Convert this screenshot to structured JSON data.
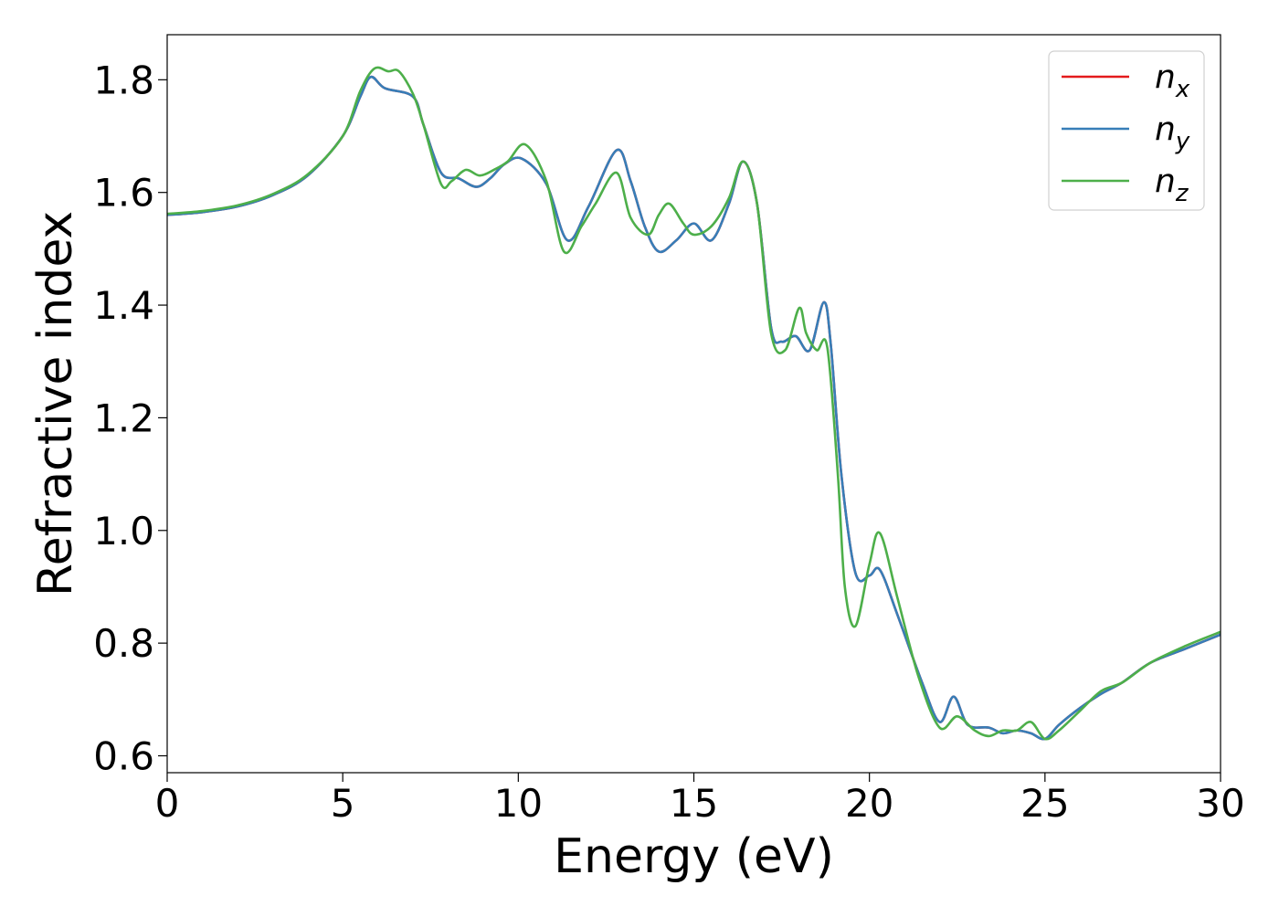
{
  "chart_data": {
    "type": "line",
    "title": "",
    "xlabel": "Energy (eV)",
    "ylabel": "Refractive index",
    "xlim": [
      0,
      30
    ],
    "ylim": [
      0.57,
      1.88
    ],
    "xticks": [
      0,
      5,
      10,
      15,
      20,
      25,
      30
    ],
    "yticks": [
      0.6,
      0.8,
      1.0,
      1.2,
      1.4,
      1.6,
      1.8
    ],
    "grid": false,
    "legend_position": "top-right",
    "series": [
      {
        "name": "n_x",
        "label_base": "n",
        "label_sub": "x",
        "color": "#e41a1c",
        "x": [
          0,
          1,
          2,
          3,
          4,
          5,
          5.5,
          5.8,
          6.2,
          7,
          7.3,
          7.8,
          8.3,
          8.8,
          9.2,
          9.6,
          10.1,
          10.8,
          11.4,
          12,
          12.8,
          13.2,
          13.6,
          14,
          14.5,
          15,
          15.5,
          16,
          16.4,
          16.8,
          17.2,
          17.5,
          17.9,
          18.3,
          18.7,
          18.9,
          19.2,
          19.6,
          20,
          20.3,
          20.8,
          21.5,
          22,
          22.4,
          22.8,
          23.4,
          23.8,
          24.2,
          24.6,
          25,
          25.4,
          26,
          26.6,
          27.2,
          28,
          29,
          30
        ],
        "values": [
          1.56,
          1.565,
          1.575,
          1.595,
          1.63,
          1.7,
          1.77,
          1.805,
          1.785,
          1.77,
          1.72,
          1.635,
          1.625,
          1.61,
          1.625,
          1.65,
          1.66,
          1.615,
          1.515,
          1.575,
          1.675,
          1.62,
          1.54,
          1.495,
          1.515,
          1.545,
          1.515,
          1.58,
          1.655,
          1.58,
          1.36,
          1.335,
          1.345,
          1.32,
          1.405,
          1.33,
          1.1,
          0.925,
          0.92,
          0.93,
          0.85,
          0.73,
          0.66,
          0.705,
          0.655,
          0.65,
          0.64,
          0.645,
          0.64,
          0.63,
          0.655,
          0.685,
          0.71,
          0.73,
          0.765,
          0.79,
          0.815
        ]
      },
      {
        "name": "n_y",
        "label_base": "n",
        "label_sub": "y",
        "color": "#377eb8",
        "x": [
          0,
          1,
          2,
          3,
          4,
          5,
          5.5,
          5.8,
          6.2,
          7,
          7.3,
          7.8,
          8.3,
          8.8,
          9.2,
          9.6,
          10.1,
          10.8,
          11.4,
          12,
          12.8,
          13.2,
          13.6,
          14,
          14.5,
          15,
          15.5,
          16,
          16.4,
          16.8,
          17.2,
          17.5,
          17.9,
          18.3,
          18.7,
          18.9,
          19.2,
          19.6,
          20,
          20.3,
          20.8,
          21.5,
          22,
          22.4,
          22.8,
          23.4,
          23.8,
          24.2,
          24.6,
          25,
          25.4,
          26,
          26.6,
          27.2,
          28,
          29,
          30
        ],
        "values": [
          1.56,
          1.565,
          1.575,
          1.595,
          1.63,
          1.7,
          1.77,
          1.805,
          1.785,
          1.77,
          1.72,
          1.635,
          1.625,
          1.61,
          1.625,
          1.65,
          1.66,
          1.615,
          1.515,
          1.575,
          1.675,
          1.62,
          1.54,
          1.495,
          1.515,
          1.545,
          1.515,
          1.58,
          1.655,
          1.58,
          1.36,
          1.335,
          1.345,
          1.32,
          1.405,
          1.33,
          1.1,
          0.925,
          0.92,
          0.93,
          0.85,
          0.73,
          0.66,
          0.705,
          0.655,
          0.65,
          0.64,
          0.645,
          0.64,
          0.63,
          0.655,
          0.685,
          0.71,
          0.73,
          0.765,
          0.79,
          0.815
        ]
      },
      {
        "name": "n_z",
        "label_base": "n",
        "label_sub": "z",
        "color": "#4daf4a",
        "x": [
          0,
          1,
          2,
          3,
          4,
          5,
          5.5,
          5.9,
          6.3,
          6.6,
          7,
          7.3,
          7.8,
          8.1,
          8.5,
          8.9,
          9.3,
          9.7,
          10.2,
          10.8,
          11.3,
          11.8,
          12.2,
          12.8,
          13.2,
          13.7,
          14,
          14.3,
          14.7,
          15,
          15.5,
          16,
          16.4,
          16.8,
          17.2,
          17.6,
          18,
          18.2,
          18.5,
          18.8,
          19.1,
          19.3,
          19.6,
          20,
          20.3,
          20.8,
          21.4,
          22,
          22.5,
          23,
          23.4,
          23.8,
          24.2,
          24.6,
          25,
          25.4,
          26,
          26.6,
          27.2,
          28,
          29,
          30
        ],
        "values": [
          1.562,
          1.567,
          1.577,
          1.597,
          1.632,
          1.7,
          1.78,
          1.82,
          1.815,
          1.815,
          1.775,
          1.72,
          1.615,
          1.62,
          1.64,
          1.63,
          1.64,
          1.655,
          1.685,
          1.62,
          1.495,
          1.54,
          1.58,
          1.635,
          1.555,
          1.525,
          1.56,
          1.58,
          1.545,
          1.525,
          1.54,
          1.59,
          1.655,
          1.58,
          1.35,
          1.32,
          1.395,
          1.35,
          1.32,
          1.325,
          1.1,
          0.9,
          0.83,
          0.94,
          0.995,
          0.88,
          0.74,
          0.65,
          0.67,
          0.645,
          0.635,
          0.645,
          0.645,
          0.66,
          0.63,
          0.645,
          0.68,
          0.715,
          0.73,
          0.765,
          0.795,
          0.82
        ]
      }
    ]
  }
}
